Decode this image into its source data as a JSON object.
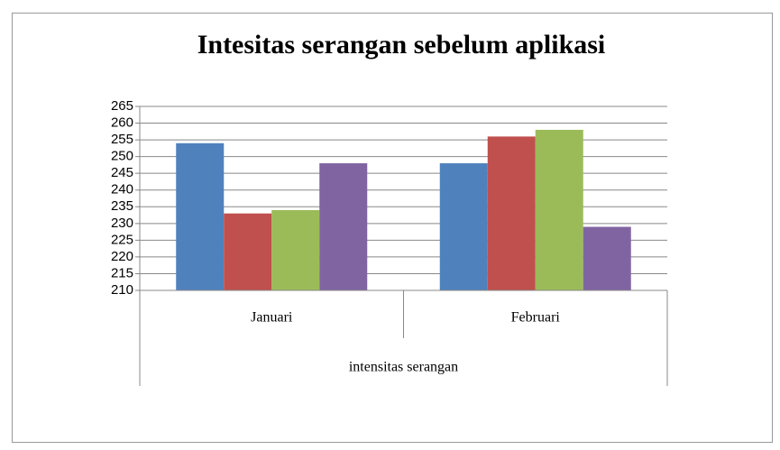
{
  "chart_data": {
    "type": "bar",
    "title": "Intesitas serangan sebelum aplikasi",
    "categories": [
      "Januari",
      "Februari"
    ],
    "category_group": "intensitas serangan",
    "series": [
      {
        "color": "#4f81bd",
        "values": [
          254,
          248
        ]
      },
      {
        "color": "#c0504d",
        "values": [
          233,
          256
        ]
      },
      {
        "color": "#9bbb59",
        "values": [
          234,
          258
        ]
      },
      {
        "color": "#8064a2",
        "values": [
          248,
          229
        ]
      }
    ],
    "ylim": [
      210,
      265
    ],
    "yticks": [
      210,
      215,
      220,
      225,
      230,
      235,
      240,
      245,
      250,
      255,
      260,
      265
    ],
    "grid": true
  }
}
